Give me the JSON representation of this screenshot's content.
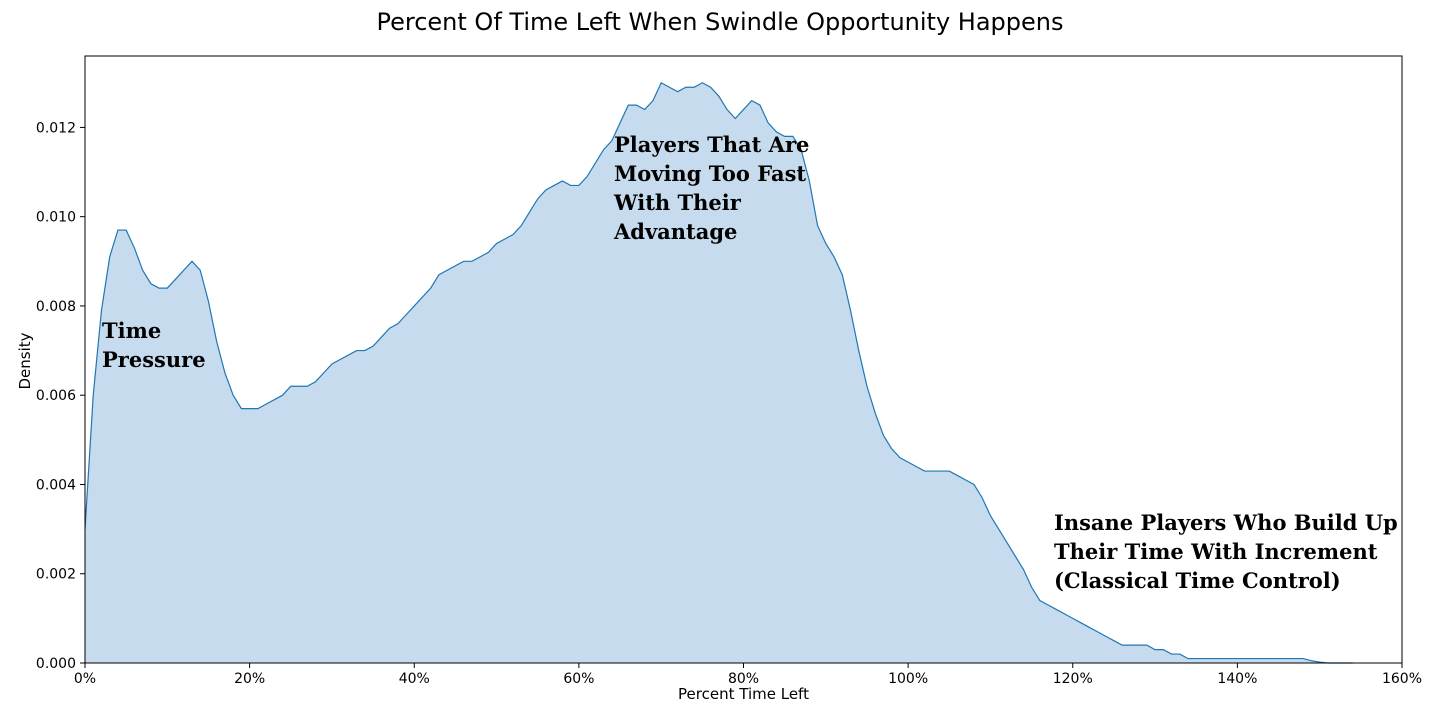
{
  "chart_data": {
    "type": "area",
    "title": "Percent Of Time Left When Swindle Opportunity Happens",
    "xlabel": "Percent Time Left",
    "ylabel": "Density",
    "xlim": [
      0,
      160
    ],
    "ylim": [
      0,
      0.0136
    ],
    "x_ticks": [
      0,
      20,
      40,
      60,
      80,
      100,
      120,
      140,
      160
    ],
    "x_tick_labels": [
      "0%",
      "20%",
      "40%",
      "60%",
      "80%",
      "100%",
      "120%",
      "140%",
      "160%"
    ],
    "y_ticks": [
      0,
      0.002,
      0.004,
      0.006,
      0.008,
      0.01,
      0.012
    ],
    "y_tick_labels": [
      "0.000",
      "0.002",
      "0.004",
      "0.006",
      "0.008",
      "0.010",
      "0.012"
    ],
    "grid": false,
    "fill_color": "#c6dbed",
    "line_color": "#1f77b4",
    "series": [
      {
        "x": [
          0,
          1,
          2,
          3,
          4,
          5,
          6,
          7,
          8,
          9,
          10,
          11,
          12,
          13,
          14,
          15,
          16,
          17,
          18,
          19,
          20,
          21,
          22,
          23,
          24,
          25,
          26,
          27,
          28,
          29,
          30,
          31,
          32,
          33,
          34,
          35,
          36,
          37,
          38,
          39,
          40,
          41,
          42,
          43,
          44,
          45,
          46,
          47,
          48,
          49,
          50,
          51,
          52,
          53,
          54,
          55,
          56,
          57,
          58,
          59,
          60,
          61,
          62,
          63,
          64,
          65,
          66,
          67,
          68,
          69,
          70,
          71,
          72,
          73,
          74,
          75,
          76,
          77,
          78,
          79,
          80,
          81,
          82,
          83,
          84,
          85,
          86,
          87,
          88,
          89,
          90,
          91,
          92,
          93,
          94,
          95,
          96,
          97,
          98,
          99,
          100,
          101,
          102,
          103,
          104,
          105,
          106,
          107,
          108,
          109,
          110,
          111,
          112,
          113,
          114,
          115,
          116,
          117,
          118,
          119,
          120,
          121,
          122,
          123,
          124,
          125,
          126,
          127,
          128,
          129,
          130,
          131,
          132,
          133,
          134,
          135,
          136,
          137,
          138,
          139,
          140,
          141,
          142,
          143,
          144,
          145,
          146,
          147,
          148,
          149,
          150,
          151,
          152,
          153,
          154
        ],
        "values": [
          0.003,
          0.006,
          0.0079,
          0.0091,
          0.0097,
          0.0097,
          0.0093,
          0.0088,
          0.0085,
          0.0084,
          0.0084,
          0.0086,
          0.0088,
          0.009,
          0.0088,
          0.0081,
          0.0072,
          0.0065,
          0.006,
          0.0057,
          0.0057,
          0.0057,
          0.0058,
          0.0059,
          0.006,
          0.0062,
          0.0062,
          0.0062,
          0.0063,
          0.0065,
          0.0067,
          0.0068,
          0.0069,
          0.007,
          0.007,
          0.0071,
          0.0073,
          0.0075,
          0.0076,
          0.0078,
          0.008,
          0.0082,
          0.0084,
          0.0087,
          0.0088,
          0.0089,
          0.009,
          0.009,
          0.0091,
          0.0092,
          0.0094,
          0.0095,
          0.0096,
          0.0098,
          0.0101,
          0.0104,
          0.0106,
          0.0107,
          0.0108,
          0.0107,
          0.0107,
          0.0109,
          0.0112,
          0.0115,
          0.0117,
          0.0121,
          0.0125,
          0.0125,
          0.0124,
          0.0126,
          0.013,
          0.0129,
          0.0128,
          0.0129,
          0.0129,
          0.013,
          0.0129,
          0.0127,
          0.0124,
          0.0122,
          0.0124,
          0.0126,
          0.0125,
          0.0121,
          0.0119,
          0.0118,
          0.0118,
          0.0115,
          0.0108,
          0.0098,
          0.0094,
          0.0091,
          0.0087,
          0.0079,
          0.007,
          0.0062,
          0.0056,
          0.0051,
          0.0048,
          0.0046,
          0.0045,
          0.0044,
          0.0043,
          0.0043,
          0.0043,
          0.0043,
          0.0042,
          0.0041,
          0.004,
          0.0037,
          0.0033,
          0.003,
          0.0027,
          0.0024,
          0.0021,
          0.0017,
          0.0014,
          0.0013,
          0.0012,
          0.0011,
          0.001,
          0.0009,
          0.0008,
          0.0007,
          0.0006,
          0.0005,
          0.0004,
          0.0004,
          0.0004,
          0.0004,
          0.0003,
          0.0003,
          0.0002,
          0.0002,
          0.0001,
          0.0001,
          0.0001,
          0.0001,
          0.0001,
          0.0001,
          0.0001,
          0.0001,
          0.0001,
          0.0001,
          0.0001,
          0.0001,
          0.0001,
          0.0001,
          0.0001,
          5e-05,
          2e-05,
          0.0,
          0.0,
          0.0,
          0.0
        ]
      }
    ],
    "annotations": [
      {
        "text": "Time\nPressure"
      },
      {
        "text": "Players That Are\nMoving Too Fast\nWith Their\nAdvantage"
      },
      {
        "text": "Insane Players Who Build Up\nTheir Time With Increment\n(Classical Time Control)"
      }
    ]
  }
}
